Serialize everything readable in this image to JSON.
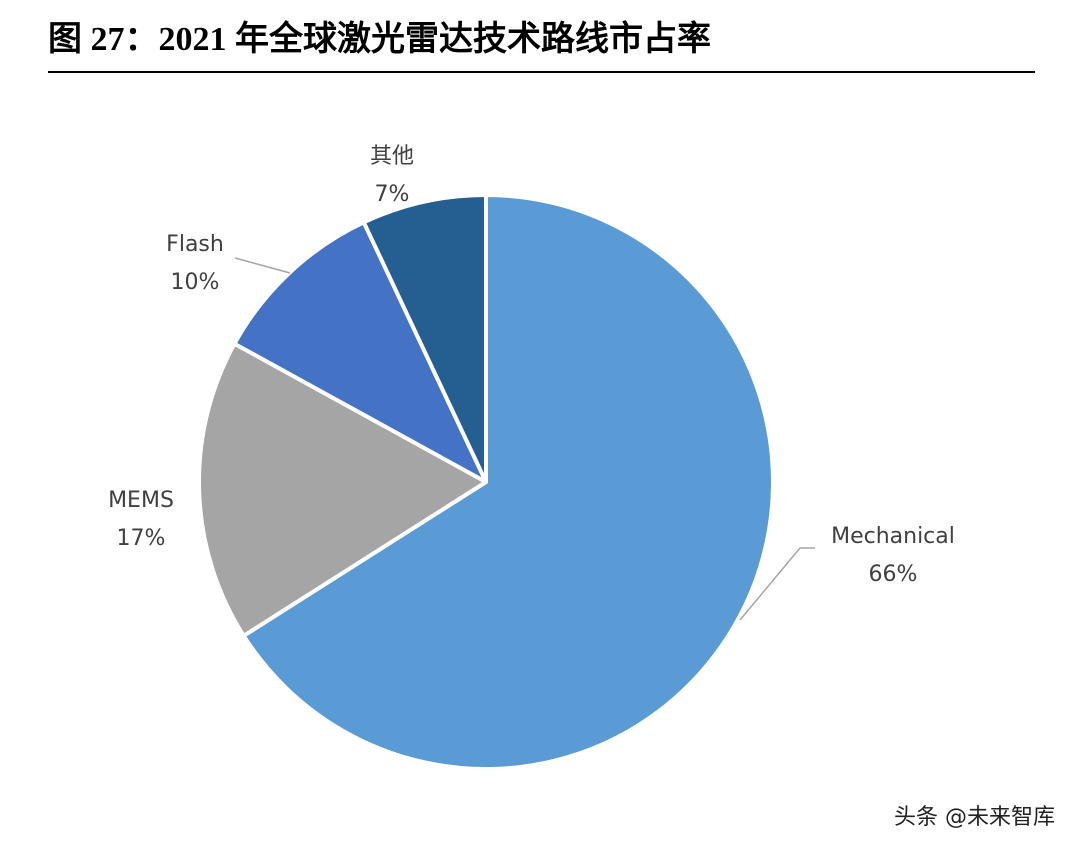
{
  "chart_data": {
    "type": "pie",
    "title": "图 27：2021 年全球激光雷达技术路线市占率",
    "categories": [
      "Mechanical",
      "MEMS",
      "Flash",
      "其他"
    ],
    "values": [
      66,
      17,
      10,
      7
    ],
    "value_labels": [
      "66%",
      "17%",
      "10%",
      "7%"
    ],
    "colors": [
      "#5b9bd5",
      "#a5a5a5",
      "#4472c4",
      "#255e91"
    ]
  },
  "watermark": "头条 @未来智库"
}
